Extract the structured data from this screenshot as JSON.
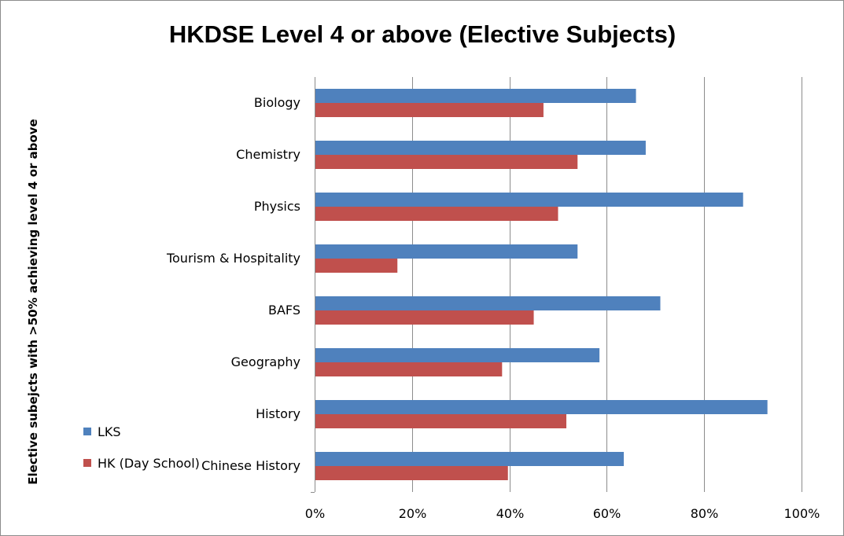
{
  "chart_data": {
    "type": "bar",
    "orientation": "horizontal",
    "title": "HKDSE Level 4 or above (Elective Subjects)",
    "ylabel": "Elective subejcts with >50% achieving level 4 or above",
    "xlabel": "",
    "categories": [
      "Biology",
      "Chemistry",
      "Physics",
      "Tourism & Hospitality",
      "BAFS",
      "Geography",
      "History",
      "Chinese History"
    ],
    "series": [
      {
        "name": "LKS",
        "color": "#4F81BD",
        "values": [
          0.66,
          0.68,
          0.88,
          0.54,
          0.71,
          0.585,
          0.93,
          0.635
        ]
      },
      {
        "name": "HK (Day School)",
        "color": "#C0504D",
        "values": [
          0.47,
          0.54,
          0.5,
          0.17,
          0.45,
          0.385,
          0.517,
          0.397
        ]
      }
    ],
    "xlim": [
      0,
      1
    ],
    "x_ticks": [
      "0%",
      "20%",
      "40%",
      "60%",
      "80%",
      "100%"
    ],
    "grid": "vertical",
    "legend_position": "bottom-left"
  }
}
